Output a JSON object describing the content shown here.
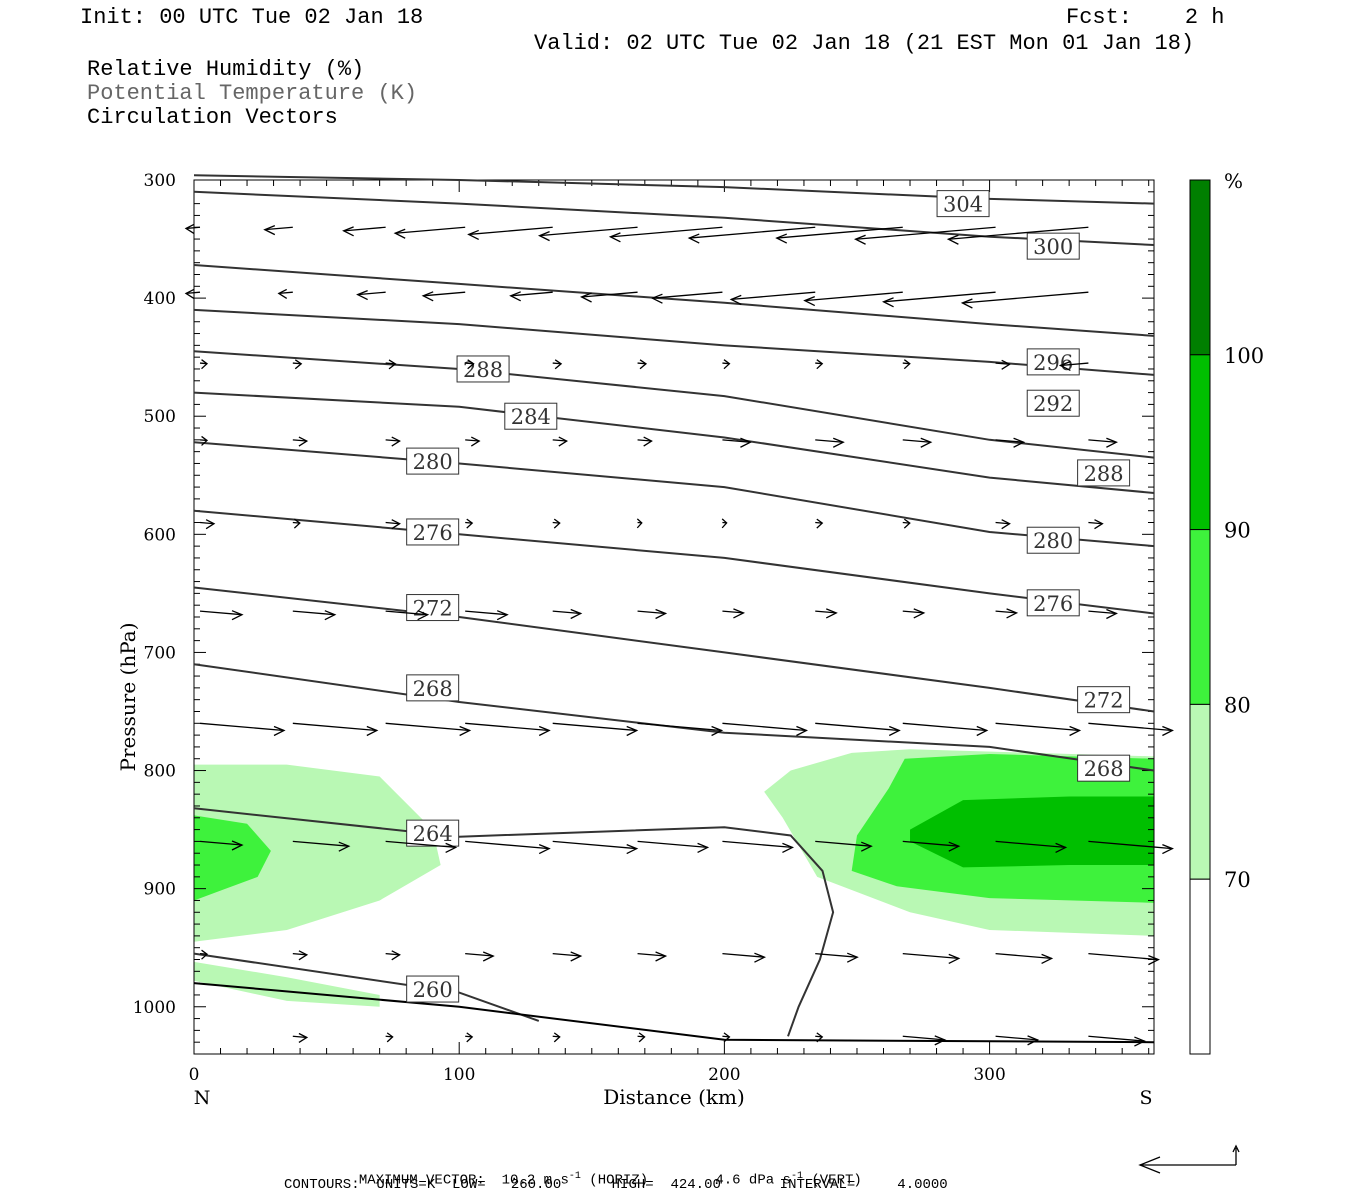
{
  "header": {
    "init": "Init: 00 UTC Tue 02 Jan 18",
    "fcst": "Fcst:    2 h",
    "valid": "Valid: 02 UTC Tue 02 Jan 18 (21 EST Mon 01 Jan 18)",
    "fields": [
      "Relative Humidity (%)",
      "Potential Temperature (K)",
      "Circulation Vectors"
    ]
  },
  "chart_data": {
    "type": "cross-section contour",
    "xlabel": "Distance (km)",
    "ylabel": "Pressure (hPa)",
    "x_ticks": [
      "0",
      "100",
      "200",
      "300"
    ],
    "y_ticks": [
      "300",
      "400",
      "500",
      "600",
      "700",
      "800",
      "900",
      "1000"
    ],
    "xlim": [
      0,
      362
    ],
    "ylim": [
      1040,
      300
    ],
    "endpoints": {
      "left": "N",
      "right": "S"
    },
    "colorbar": {
      "unit": "%",
      "levels": [
        {
          "label": "70",
          "color": "#ffffff"
        },
        {
          "label": "80",
          "color": "#b9f8b4"
        },
        {
          "label": "90",
          "color": "#3ef23c"
        },
        {
          "label": "100",
          "color": "#00bf00"
        },
        {
          "label": "",
          "color": "#007f00"
        }
      ]
    },
    "theta_contours": [
      {
        "value": 304,
        "label": "304",
        "points": [
          [
            0,
            296
          ],
          [
            100,
            300
          ],
          [
            200,
            306
          ],
          [
            300,
            316
          ],
          [
            362,
            320
          ]
        ],
        "label_at": [
          290,
          320
        ]
      },
      {
        "value": 300,
        "label": "300",
        "points": [
          [
            0,
            310
          ],
          [
            100,
            320
          ],
          [
            200,
            332
          ],
          [
            300,
            348
          ],
          [
            362,
            355
          ]
        ],
        "label_at": [
          324,
          356
        ]
      },
      {
        "value": 296,
        "label": "296",
        "points": [
          [
            0,
            372
          ],
          [
            100,
            388
          ],
          [
            200,
            404
          ],
          [
            300,
            422
          ],
          [
            362,
            432
          ]
        ],
        "label_at": [
          324,
          454
        ]
      },
      {
        "value": 292,
        "label": "292",
        "points": [
          [
            0,
            410
          ],
          [
            100,
            422
          ],
          [
            200,
            440
          ],
          [
            300,
            454
          ],
          [
            362,
            465
          ]
        ],
        "label_at": [
          324,
          489
        ]
      },
      {
        "value": 288,
        "label": "288",
        "points": [
          [
            0,
            445
          ],
          [
            100,
            460
          ],
          [
            200,
            483
          ],
          [
            300,
            520
          ],
          [
            362,
            535
          ]
        ],
        "label_at": [
          109,
          460
        ]
      },
      {
        "value": 284,
        "label": "284",
        "points": [
          [
            0,
            480
          ],
          [
            100,
            492
          ],
          [
            200,
            518
          ],
          [
            300,
            552
          ],
          [
            362,
            565
          ]
        ],
        "label_at": [
          127,
          500
        ]
      },
      {
        "value": 280,
        "label": "280",
        "points": [
          [
            0,
            522
          ],
          [
            100,
            540
          ],
          [
            200,
            560
          ],
          [
            300,
            598
          ],
          [
            362,
            610
          ]
        ],
        "label_at": [
          90,
          538
        ]
      },
      {
        "value": 276,
        "label": "276",
        "points": [
          [
            0,
            580
          ],
          [
            100,
            600
          ],
          [
            200,
            620
          ],
          [
            300,
            650
          ],
          [
            362,
            667
          ]
        ],
        "label_at": [
          90,
          598
        ]
      },
      {
        "value": 272,
        "label": "272",
        "points": [
          [
            0,
            645
          ],
          [
            100,
            670
          ],
          [
            200,
            700
          ],
          [
            300,
            730
          ],
          [
            362,
            750
          ]
        ],
        "label_at": [
          90,
          662
        ]
      },
      {
        "value": 268,
        "label": "268",
        "points": [
          [
            0,
            710
          ],
          [
            100,
            742
          ],
          [
            200,
            768
          ],
          [
            300,
            780
          ],
          [
            362,
            800
          ]
        ],
        "label_at": [
          90,
          730
        ]
      },
      {
        "value": 264,
        "label": "264",
        "points": [
          [
            0,
            832
          ],
          [
            100,
            856
          ],
          [
            200,
            848
          ],
          [
            225,
            855
          ],
          [
            237,
            885
          ],
          [
            241,
            920
          ],
          [
            236,
            960
          ],
          [
            228,
            1000
          ],
          [
            224,
            1025
          ]
        ],
        "label_at": [
          90,
          853
        ]
      },
      {
        "value": 260,
        "label": "260",
        "points": [
          [
            0,
            955
          ],
          [
            100,
            988
          ],
          [
            130,
            1012
          ]
        ],
        "label_at": [
          90,
          985
        ]
      }
    ],
    "extra_labels": [
      {
        "label": "288",
        "at": [
          343,
          548
        ]
      },
      {
        "label": "280",
        "at": [
          324,
          605
        ]
      },
      {
        "label": "276",
        "at": [
          324,
          658
        ]
      },
      {
        "label": "272",
        "at": [
          343,
          740
        ]
      },
      {
        "label": "268",
        "at": [
          343,
          798
        ]
      }
    ],
    "surface": [
      [
        0,
        980
      ],
      [
        100,
        1000
      ],
      [
        200,
        1028
      ],
      [
        362,
        1030
      ]
    ],
    "vector_rows": [
      {
        "p": 340,
        "x": [
          0,
          35,
          70,
          100,
          133,
          165,
          197,
          232,
          265,
          300,
          335
        ],
        "u": [
          -1,
          -2,
          -3,
          -5,
          -6,
          -7,
          -8,
          -9,
          -9,
          -10,
          -10
        ]
      },
      {
        "p": 395,
        "x": [
          0,
          35,
          70,
          100,
          133,
          165,
          197,
          232,
          265,
          300,
          335
        ],
        "u": [
          -1,
          -1,
          -2,
          -3,
          -3,
          -4,
          -5,
          -6,
          -7,
          -8,
          -9
        ]
      },
      {
        "p": 455,
        "x": [
          0,
          35,
          70,
          100,
          133,
          165,
          197,
          232,
          265,
          300,
          335
        ],
        "u": [
          0.5,
          0.6,
          0.7,
          0.6,
          0.6,
          0.6,
          0.5,
          0.5,
          0.5,
          1,
          -2
        ]
      },
      {
        "p": 520,
        "x": [
          0,
          35,
          70,
          100,
          133,
          165,
          197,
          232,
          265,
          300,
          335
        ],
        "u": [
          0.5,
          1,
          1,
          1,
          1,
          1,
          2,
          2,
          2,
          2,
          2
        ]
      },
      {
        "p": 590,
        "x": [
          0,
          35,
          70,
          100,
          133,
          165,
          197,
          232,
          265,
          300,
          335
        ],
        "u": [
          1,
          0.5,
          1,
          0.5,
          0.5,
          0.3,
          0.3,
          0.5,
          0.5,
          1,
          1
        ]
      },
      {
        "p": 665,
        "x": [
          0,
          35,
          70,
          100,
          133,
          165,
          197,
          232,
          265,
          300,
          335
        ],
        "u": [
          3,
          3,
          3,
          3,
          2,
          2,
          1.5,
          1.5,
          1.5,
          1.5,
          2
        ]
      },
      {
        "p": 760,
        "x": [
          0,
          35,
          70,
          100,
          133,
          165,
          197,
          232,
          265,
          300,
          335
        ],
        "u": [
          6,
          6,
          6,
          6,
          6,
          6,
          6,
          6,
          6,
          6,
          6
        ]
      },
      {
        "p": 860,
        "x": [
          0,
          35,
          70,
          100,
          133,
          165,
          197,
          232,
          265,
          300,
          335
        ],
        "u": [
          3,
          4,
          5,
          6,
          6,
          5,
          5,
          4,
          4,
          5,
          6
        ]
      },
      {
        "p": 955,
        "x": [
          0,
          35,
          70,
          100,
          133,
          165,
          197,
          232,
          265,
          300,
          335
        ],
        "u": [
          0.5,
          1,
          1,
          2,
          2,
          2,
          3,
          3,
          4,
          4,
          5
        ]
      },
      {
        "p": 1025,
        "x": [
          35,
          70,
          100,
          133,
          165,
          197,
          232,
          265,
          300,
          335
        ],
        "u": [
          1,
          0.5,
          0.5,
          0.5,
          0.5,
          0.5,
          0.5,
          3,
          3,
          4
        ]
      }
    ]
  },
  "footer": {
    "max_vector_label": "MAXIMUM VECTOR:",
    "horiz_value": "10.2 m s",
    "horiz_unit_exp": "-1",
    "horiz_tag": "(HORIZ)",
    "vert_value": "4.6 dPa s",
    "vert_unit_exp": "-1",
    "vert_tag": "(VERT)",
    "contours": "CONTOURS:  UNITS=K  LOW=   260.00      HIGH=  424.00       INTERVAL=     4.0000"
  }
}
